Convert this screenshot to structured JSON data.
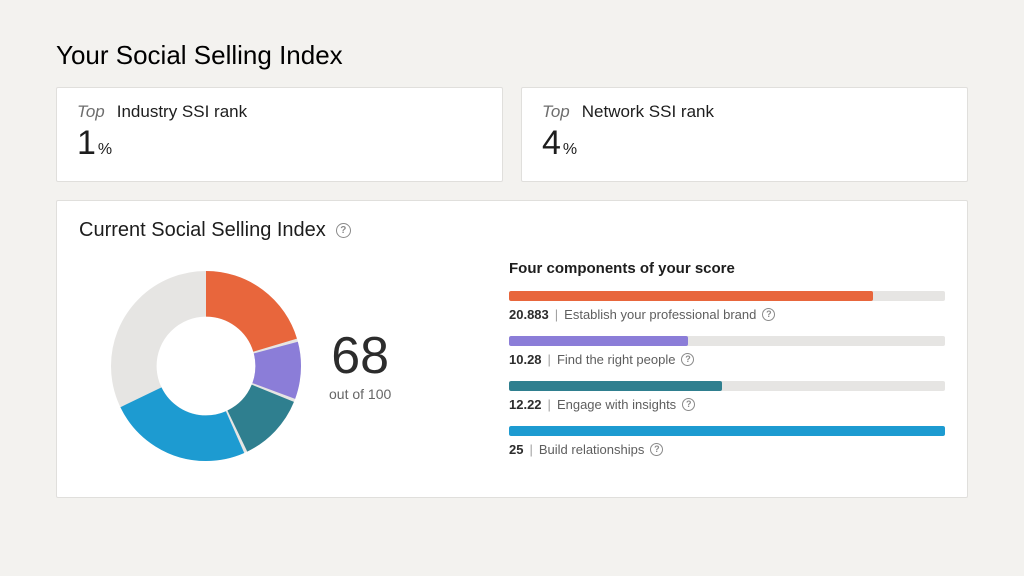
{
  "page": {
    "title": "Your Social Selling Index",
    "background_color": "#f3f2ef",
    "card_background": "#ffffff",
    "card_border_color": "#e0dfdc"
  },
  "ranks": {
    "top_word": "Top",
    "industry": {
      "label": "Industry SSI rank",
      "value": "1",
      "unit": "%"
    },
    "network": {
      "label": "Network SSI rank",
      "value": "4",
      "unit": "%"
    }
  },
  "ssi": {
    "header": "Current Social Selling Index",
    "score": "68",
    "score_subtext": "out of 100",
    "score_max": 100,
    "components_title": "Four components of your score",
    "donut": {
      "ring_background": "#e6e5e3",
      "stroke_width": 24,
      "gap_deg": 2
    },
    "component_max": 25,
    "components": [
      {
        "value": "20.883",
        "num": 20.883,
        "label": "Establish your professional brand",
        "color": "#e8663c"
      },
      {
        "value": "10.28",
        "num": 10.28,
        "label": "Find the right people",
        "color": "#8b7dd8"
      },
      {
        "value": "12.22",
        "num": 12.22,
        "label": "Engage with insights",
        "color": "#2f7f8f"
      },
      {
        "value": "25",
        "num": 25,
        "label": "Build relationships",
        "color": "#1d9bd1"
      }
    ],
    "bar_background": "#e6e5e3"
  },
  "typography": {
    "title_fontsize": 26,
    "rank_value_fontsize": 34,
    "score_fontsize": 52,
    "body_color": "#1d1d1d",
    "muted_color": "#6e6e6e"
  }
}
